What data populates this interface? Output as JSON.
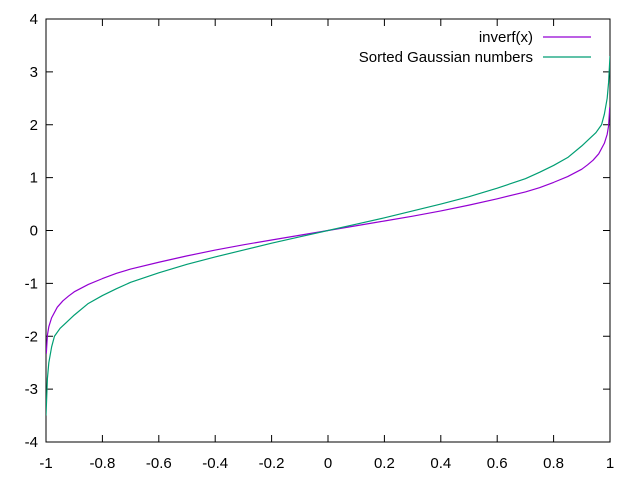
{
  "chart_data": {
    "type": "line",
    "title": "",
    "xlabel": "",
    "ylabel": "",
    "xlim": [
      -1,
      1
    ],
    "ylim": [
      -4,
      4
    ],
    "grid": false,
    "legend_position": "top-right",
    "x_ticks": [
      -1,
      -0.8,
      -0.6,
      -0.4,
      -0.2,
      0,
      0.2,
      0.4,
      0.6,
      0.8,
      1
    ],
    "x_tick_labels": [
      "-1",
      "-0.8",
      "-0.6",
      "-0.4",
      "-0.2",
      "0",
      "0.2",
      "0.4",
      "0.6",
      "0.8",
      "1"
    ],
    "y_ticks": [
      -4,
      -3,
      -2,
      -1,
      0,
      1,
      2,
      3,
      4
    ],
    "y_tick_labels": [
      "-4",
      "-3",
      "-2",
      "-1",
      "0",
      "1",
      "2",
      "3",
      "4"
    ],
    "series": [
      {
        "name": "inverf(x)",
        "color": "#9400d3",
        "x": [
          -0.999,
          -0.995,
          -0.99,
          -0.98,
          -0.96,
          -0.94,
          -0.92,
          -0.9,
          -0.85,
          -0.8,
          -0.75,
          -0.7,
          -0.6,
          -0.5,
          -0.4,
          -0.3,
          -0.2,
          -0.1,
          0,
          0.1,
          0.2,
          0.3,
          0.4,
          0.5,
          0.6,
          0.7,
          0.75,
          0.8,
          0.85,
          0.9,
          0.92,
          0.94,
          0.96,
          0.98,
          0.99,
          0.995,
          0.999
        ],
        "y": [
          -2.33,
          -1.98,
          -1.82,
          -1.65,
          -1.45,
          -1.33,
          -1.24,
          -1.16,
          -1.02,
          -0.91,
          -0.81,
          -0.73,
          -0.6,
          -0.48,
          -0.37,
          -0.27,
          -0.18,
          -0.09,
          0,
          0.09,
          0.18,
          0.27,
          0.37,
          0.48,
          0.6,
          0.73,
          0.81,
          0.91,
          1.02,
          1.16,
          1.24,
          1.33,
          1.45,
          1.65,
          1.82,
          1.98,
          2.33
        ]
      },
      {
        "name": "Sorted Gaussian numbers",
        "color": "#009e73",
        "x": [
          -1,
          -0.995,
          -0.99,
          -0.98,
          -0.97,
          -0.95,
          -0.93,
          -0.9,
          -0.85,
          -0.8,
          -0.75,
          -0.7,
          -0.6,
          -0.5,
          -0.4,
          -0.3,
          -0.2,
          -0.1,
          0,
          0.1,
          0.2,
          0.3,
          0.4,
          0.5,
          0.6,
          0.7,
          0.75,
          0.8,
          0.85,
          0.9,
          0.93,
          0.95,
          0.97,
          0.98,
          0.99,
          0.995,
          1
        ],
        "y": [
          -3.5,
          -2.8,
          -2.5,
          -2.2,
          -2.0,
          -1.85,
          -1.75,
          -1.6,
          -1.38,
          -1.23,
          -1.1,
          -0.98,
          -0.8,
          -0.64,
          -0.5,
          -0.37,
          -0.24,
          -0.12,
          0,
          0.12,
          0.24,
          0.37,
          0.5,
          0.64,
          0.8,
          0.98,
          1.1,
          1.23,
          1.38,
          1.6,
          1.75,
          1.85,
          2.0,
          2.2,
          2.5,
          2.8,
          3.3
        ]
      }
    ]
  }
}
